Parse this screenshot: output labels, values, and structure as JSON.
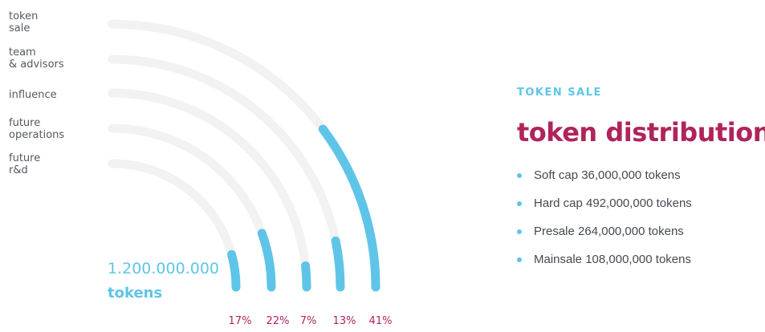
{
  "colors": {
    "accent": "#5ec5e8",
    "brand": "#b0245b",
    "track": "#f2f2f2",
    "text": "#555a60"
  },
  "chart_data": {
    "type": "radial-bar",
    "categories": [
      "token\nsale",
      "team\n& advisors",
      "influence",
      "future\noperations",
      "future\nr&d"
    ],
    "values": [
      41,
      13,
      7,
      22,
      17
    ],
    "value_labels": [
      "41%",
      "13%",
      "7%",
      "22%",
      "17%"
    ],
    "total_value": "1.200.000.000",
    "total_unit": "tokens"
  },
  "right": {
    "eyebrow": "TOKEN SALE",
    "heading": "token distribution",
    "facts": [
      "Soft cap 36,000,000 tokens",
      "Hard cap 492,000,000 tokens",
      "Presale 264,000,000 tokens",
      "Mainsale 108,000,000 tokens"
    ]
  }
}
